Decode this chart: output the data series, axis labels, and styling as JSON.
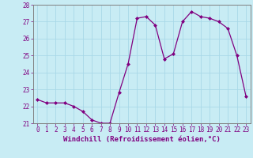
{
  "x": [
    0,
    1,
    2,
    3,
    4,
    5,
    6,
    7,
    8,
    9,
    10,
    11,
    12,
    13,
    14,
    15,
    16,
    17,
    18,
    19,
    20,
    21,
    22,
    23
  ],
  "y": [
    22.4,
    22.2,
    22.2,
    22.2,
    22.0,
    21.7,
    21.2,
    21.0,
    21.0,
    22.8,
    24.5,
    27.2,
    27.3,
    26.8,
    24.8,
    25.1,
    27.0,
    27.6,
    27.3,
    27.2,
    27.0,
    26.6,
    25.0,
    22.6
  ],
  "line_color": "#800080",
  "marker": "D",
  "markersize": 2.0,
  "linewidth": 0.9,
  "xlabel": "Windchill (Refroidissement éolien,°C)",
  "xlabel_fontsize": 6.5,
  "ylim": [
    21,
    28
  ],
  "xlim": [
    -0.5,
    23.5
  ],
  "yticks": [
    21,
    22,
    23,
    24,
    25,
    26,
    27,
    28
  ],
  "xticks": [
    0,
    1,
    2,
    3,
    4,
    5,
    6,
    7,
    8,
    9,
    10,
    11,
    12,
    13,
    14,
    15,
    16,
    17,
    18,
    19,
    20,
    21,
    22,
    23
  ],
  "tick_fontsize": 5.5,
  "grid_color": "#a8d8e8",
  "bg_color": "#c8ecf4",
  "marker_color": "#800080",
  "spine_color": "#808080"
}
